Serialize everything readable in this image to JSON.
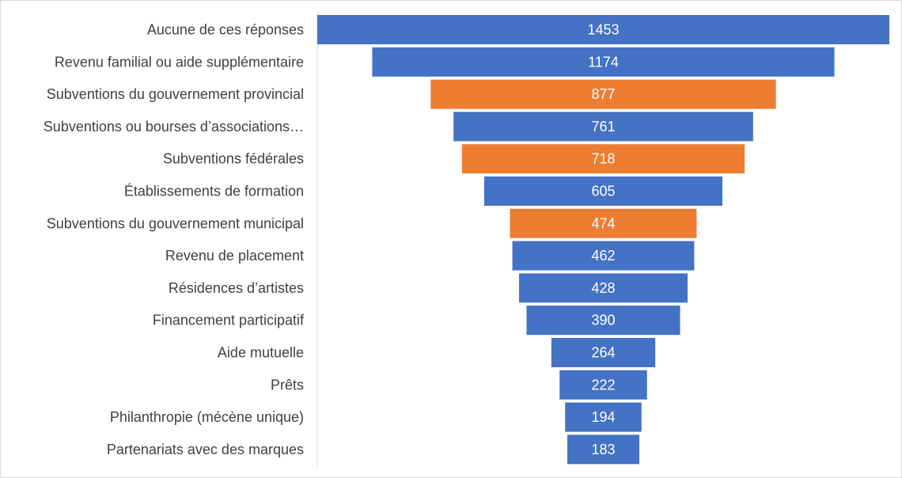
{
  "chart_data": {
    "type": "funnel",
    "categories": [
      "Aucune de ces réponses",
      "Revenu familial ou aide supplémentaire",
      "Subventions du gouvernement provincial",
      "Subventions ou bourses d’associations…",
      "Subventions fédérales",
      "Établissements de formation",
      "Subventions du gouvernement municipal",
      "Revenu de placement",
      "Résidences d’artistes",
      "Financement participatif",
      "Aide mutuelle",
      "Prêts",
      "Philanthropie (mécène unique)",
      "Partenariats avec des marques"
    ],
    "values": [
      1453,
      1174,
      877,
      761,
      718,
      605,
      474,
      462,
      428,
      390,
      264,
      222,
      194,
      183
    ],
    "highlighted": [
      false,
      false,
      true,
      false,
      true,
      false,
      true,
      false,
      false,
      false,
      false,
      false,
      false,
      false
    ],
    "colors": {
      "default": "#4472C4",
      "highlight": "#ED7D31"
    },
    "data_labels": true,
    "legend": "none",
    "grid": false
  }
}
